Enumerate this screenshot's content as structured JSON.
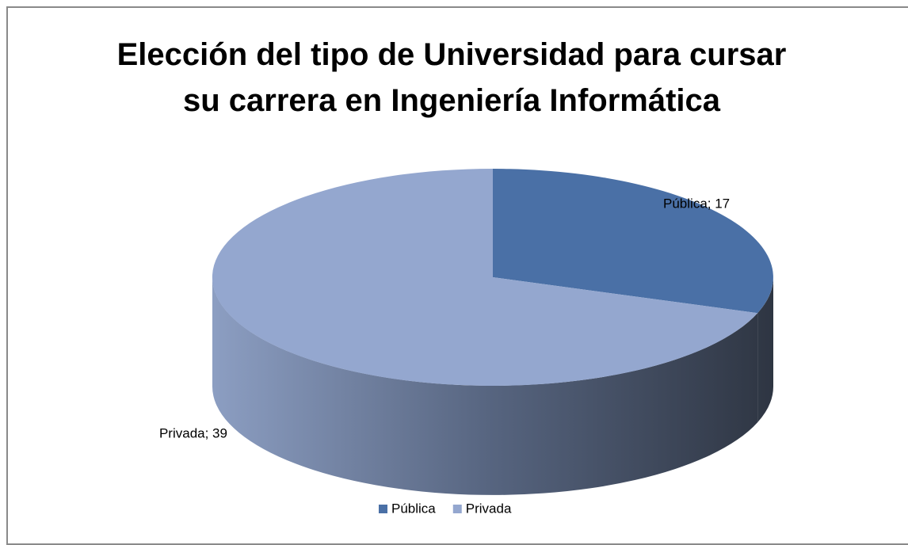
{
  "chart_data": {
    "type": "pie",
    "title": "Elección del tipo de Universidad para cursar su carrera en Ingeniería Informática",
    "categories": [
      "Pública",
      "Privada"
    ],
    "values": [
      17,
      39
    ],
    "value_labels": [
      "Pública; 17",
      "Privada; 39"
    ],
    "colors": [
      "#4a70a6",
      "#94a7cf"
    ],
    "legend": "bottom"
  }
}
